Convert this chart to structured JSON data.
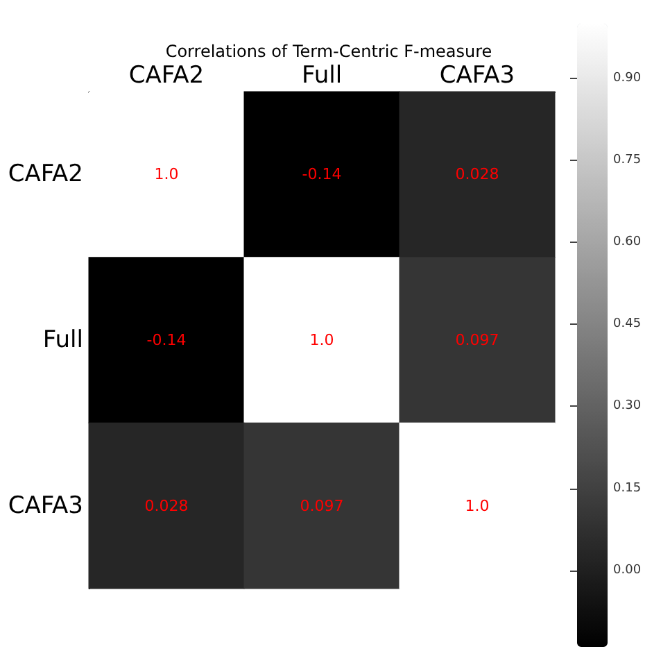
{
  "chart_data": {
    "type": "heatmap",
    "title": "Correlations of Term-Centric F-measure",
    "categories": [
      "CAFA2",
      "Full",
      "CAFA3"
    ],
    "y_categories": [
      "CAFA2",
      "Full",
      "CAFA3"
    ],
    "cells": [
      [
        1.0,
        -0.14,
        0.028
      ],
      [
        -0.14,
        1.0,
        0.097
      ],
      [
        0.028,
        0.097,
        1.0
      ]
    ],
    "cell_labels": [
      [
        "1.0",
        "-0.14",
        "0.028"
      ],
      [
        "-0.14",
        "1.0",
        "0.097"
      ],
      [
        "0.028",
        "0.097",
        "1.0"
      ]
    ],
    "clim": [
      -0.14,
      1.0
    ],
    "cticks": [
      {
        "value": 0.0,
        "label": "0.00"
      },
      0.15,
      {
        "value": 0.3,
        "label": "0.30"
      },
      0.45,
      {
        "value": 0.6,
        "label": "0.60"
      },
      0.75,
      {
        "value": 0.9,
        "label": "0.90"
      }
    ]
  }
}
